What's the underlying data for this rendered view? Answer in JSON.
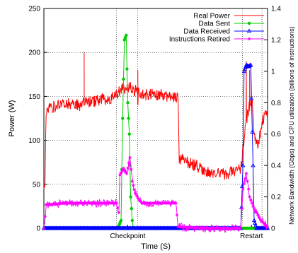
{
  "chart_data": {
    "type": "line",
    "xlabel": "Time (S)",
    "ylabel": "Power (W)",
    "y2label": "Network Bandwidth (Gbps) and CPU utilization (billions of instructions)",
    "x_range": [
      0,
      1000
    ],
    "ylim": [
      0,
      250
    ],
    "y2lim": [
      0,
      1.4
    ],
    "yticks": [
      "0",
      "50",
      "100",
      "150",
      "200",
      "250"
    ],
    "y2ticks": [
      "0",
      "0.2",
      "0.4",
      "0.6",
      "0.8",
      "1",
      "1.2",
      "1.4"
    ],
    "grid": "dotted",
    "legend_position": "top-right",
    "annotations": [
      {
        "label": "Checkpoint",
        "x": 375,
        "markers": [
          325,
          420
        ]
      },
      {
        "label": "Restart",
        "x": 928,
        "markers": [
          888,
          975
        ]
      }
    ],
    "series": [
      {
        "name": "Real Power",
        "axis": "left",
        "color": "#ff0000",
        "marker": "none",
        "points": [
          [
            0,
            45
          ],
          [
            5,
            55
          ],
          [
            10,
            135
          ],
          [
            40,
            138
          ],
          [
            80,
            140
          ],
          [
            120,
            142
          ],
          [
            160,
            140
          ],
          [
            200,
            143
          ],
          [
            230,
            145
          ],
          [
            250,
            146
          ],
          [
            270,
            147
          ],
          [
            300,
            148
          ],
          [
            320,
            150
          ],
          [
            340,
            156
          ],
          [
            360,
            160
          ],
          [
            380,
            160
          ],
          [
            400,
            158
          ],
          [
            420,
            155
          ],
          [
            440,
            152
          ],
          [
            470,
            152
          ],
          [
            520,
            152
          ],
          [
            560,
            150
          ],
          [
            590,
            148
          ],
          [
            600,
            148
          ],
          [
            605,
            80
          ],
          [
            650,
            75
          ],
          [
            700,
            68
          ],
          [
            750,
            63
          ],
          [
            800,
            62
          ],
          [
            850,
            64
          ],
          [
            880,
            68
          ],
          [
            900,
            115
          ],
          [
            920,
            140
          ],
          [
            930,
            150
          ],
          [
            940,
            110
          ],
          [
            950,
            100
          ],
          [
            960,
            95
          ],
          [
            975,
            120
          ],
          [
            990,
            130
          ],
          [
            1000,
            130
          ]
        ],
        "spikes": [
          [
            180,
            200
          ],
          [
            420,
            180
          ],
          [
            905,
            190
          ],
          [
            920,
            180
          ]
        ]
      },
      {
        "name": "Data Sent",
        "axis": "right",
        "color": "#00cc00",
        "marker": "circle",
        "points": [
          [
            0,
            0
          ],
          [
            150,
            0
          ],
          [
            220,
            0
          ],
          [
            260,
            0
          ],
          [
            330,
            0
          ],
          [
            345,
            0.05
          ],
          [
            352,
            0.7
          ],
          [
            360,
            1.2
          ],
          [
            368,
            1.23
          ],
          [
            375,
            0.8
          ],
          [
            382,
            0.6
          ],
          [
            388,
            0.2
          ],
          [
            395,
            0.05
          ],
          [
            400,
            0
          ],
          [
            600,
            0
          ],
          [
            650,
            0
          ],
          [
            700,
            0
          ],
          [
            750,
            0
          ],
          [
            800,
            0
          ],
          [
            850,
            0
          ],
          [
            888,
            0
          ],
          [
            900,
            0
          ],
          [
            1000,
            0
          ]
        ]
      },
      {
        "name": "Data Received",
        "axis": "right",
        "color": "#0000ff",
        "marker": "triangle",
        "points": [
          [
            0,
            0
          ],
          [
            250,
            0
          ],
          [
            340,
            0
          ],
          [
            420,
            0
          ],
          [
            600,
            0
          ],
          [
            700,
            0
          ],
          [
            800,
            0
          ],
          [
            880,
            0
          ],
          [
            890,
            0.4
          ],
          [
            895,
            1.0
          ],
          [
            905,
            1.04
          ],
          [
            915,
            1.03
          ],
          [
            925,
            1.04
          ],
          [
            935,
            0.4
          ],
          [
            940,
            0.05
          ],
          [
            950,
            0
          ],
          [
            1000,
            0
          ]
        ]
      },
      {
        "name": "Instructions Retired",
        "axis": "right",
        "color": "#ff00ff",
        "marker": "star",
        "points": [
          [
            0,
            0
          ],
          [
            10,
            0.15
          ],
          [
            100,
            0.16
          ],
          [
            200,
            0.16
          ],
          [
            300,
            0.16
          ],
          [
            325,
            0.16
          ],
          [
            335,
            0.1
          ],
          [
            340,
            0.34
          ],
          [
            355,
            0.38
          ],
          [
            370,
            0.35
          ],
          [
            385,
            0.45
          ],
          [
            395,
            0.3
          ],
          [
            410,
            0.22
          ],
          [
            425,
            0.18
          ],
          [
            440,
            0.16
          ],
          [
            500,
            0.16
          ],
          [
            590,
            0.16
          ],
          [
            600,
            0.01
          ],
          [
            700,
            0
          ],
          [
            800,
            0
          ],
          [
            880,
            0
          ],
          [
            890,
            0.25
          ],
          [
            905,
            0.35
          ],
          [
            920,
            0.2
          ],
          [
            935,
            0.14
          ],
          [
            950,
            0.1
          ],
          [
            970,
            0.05
          ],
          [
            1000,
            0.01
          ]
        ]
      }
    ]
  }
}
